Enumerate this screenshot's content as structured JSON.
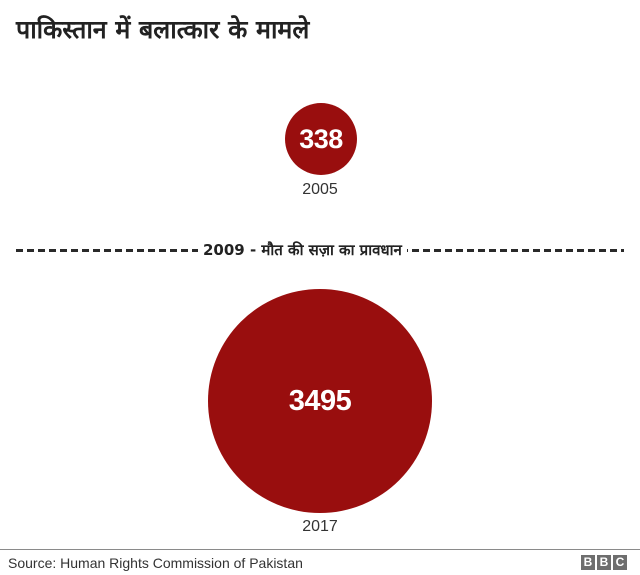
{
  "title": "पाकिस्तान में बलात्कार के मामले",
  "colors": {
    "bubble": "#990e0e",
    "text": "#222222",
    "bubble_text": "#ffffff",
    "divider": "#2a2a2a",
    "bbc_block": "#6e6e6e"
  },
  "bubbles": [
    {
      "value": "338",
      "year": "2005"
    },
    {
      "value": "3495",
      "year": "2017"
    }
  ],
  "divider": {
    "label": "2009 - मौत की सज़ा का प्रावधान"
  },
  "footer": {
    "source": "Source: Human Rights Commission of Pakistan",
    "logo": [
      "B",
      "B",
      "C"
    ]
  },
  "chart_data": {
    "type": "bubble",
    "title": "पाकिस्तान में बलात्कार के मामले",
    "categories": [
      "2005",
      "2017"
    ],
    "values": [
      338,
      3495
    ],
    "annotations": [
      {
        "position": "between 2005 and 2017",
        "text": "2009 - मौत की सज़ा का प्रावधान",
        "style": "dashed horizontal line"
      }
    ],
    "source": "Source: Human Rights Commission of Pakistan",
    "xlabel": "",
    "ylabel": "",
    "legend": "none",
    "grid": false
  }
}
